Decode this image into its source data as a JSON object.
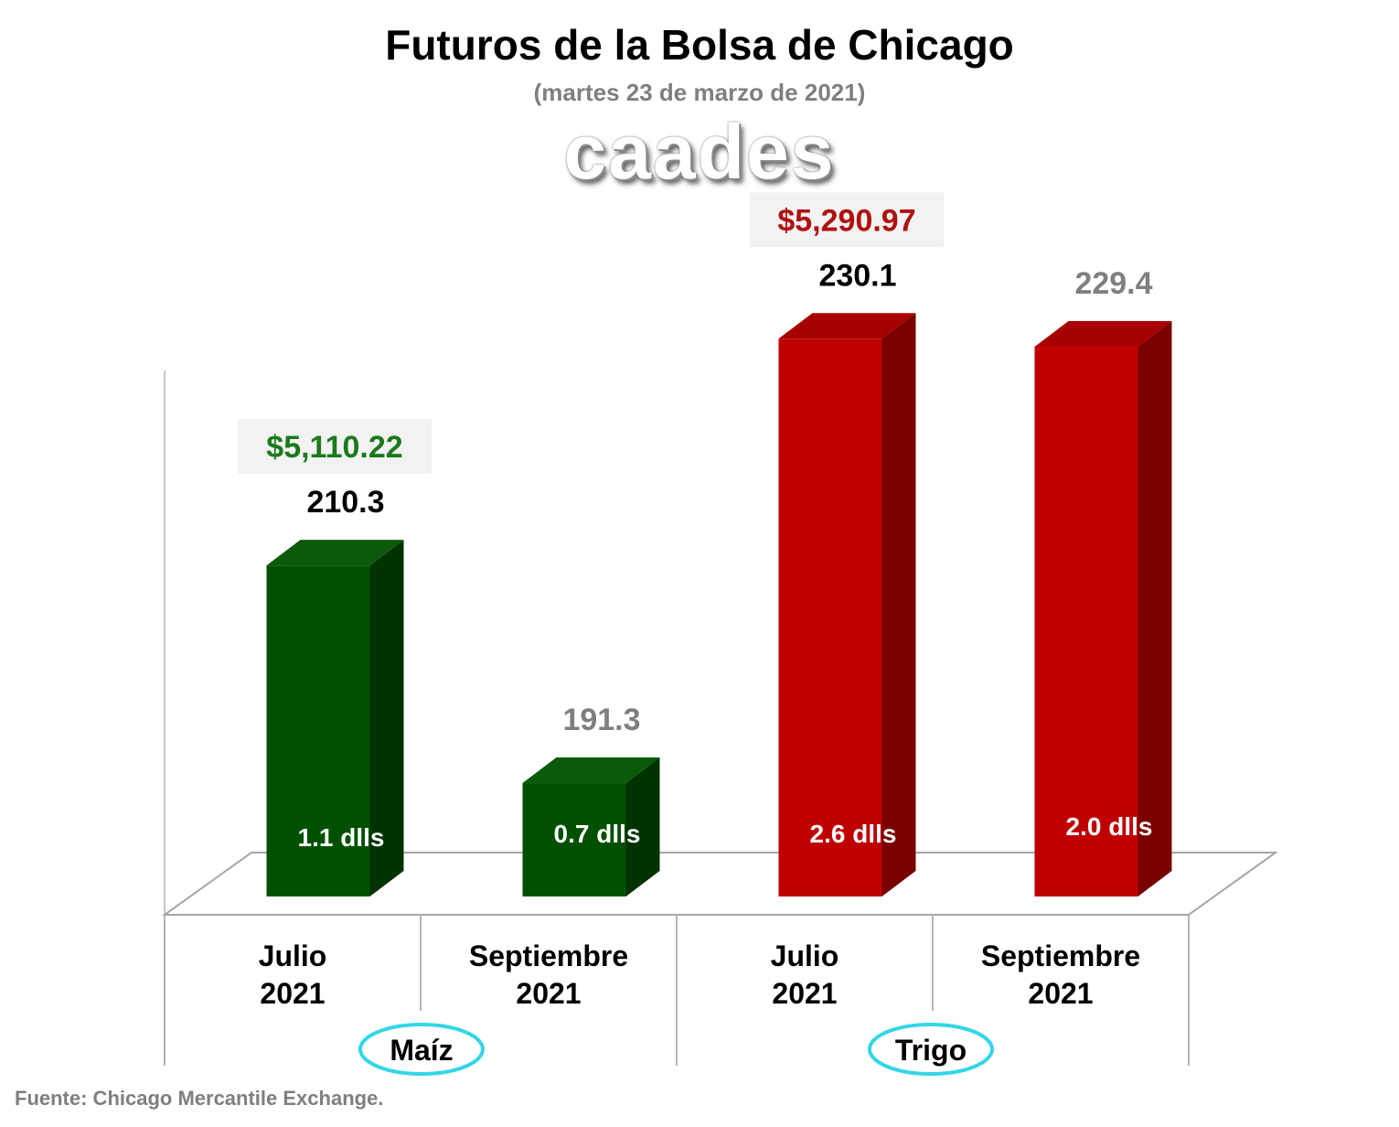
{
  "title": "Futuros de la Bolsa de Chicago",
  "subtitle": "(martes 23 de marzo de 2021)",
  "logo_text": "caades",
  "source": "Fuente: Chicago Mercantile Exchange.",
  "chart_data": {
    "type": "bar",
    "title": "Futuros de la Bolsa de Chicago",
    "subtitle": "(martes 23 de marzo de 2021)",
    "groups": [
      "Maíz",
      "Trigo"
    ],
    "categories": [
      "Julio 2021",
      "Septiembre 2021",
      "Julio 2021",
      "Septiembre 2021"
    ],
    "category_lines": [
      [
        "Julio",
        "2021"
      ],
      [
        "Septiembre",
        "2021"
      ],
      [
        "Julio",
        "2021"
      ],
      [
        "Septiembre",
        "2021"
      ]
    ],
    "values": [
      210.3,
      191.3,
      230.1,
      229.4
    ],
    "value_labels": [
      "210.3",
      "191.3",
      "230.1",
      "229.4"
    ],
    "inner_labels": [
      "1.1 dlls",
      "0.7 dlls",
      "2.6 dlls",
      "2.0 dlls"
    ],
    "price_labels": [
      "$5,110.22",
      "",
      "$5,290.97",
      ""
    ],
    "colors": {
      "maiz_front": "#005000",
      "maiz_side": "#003300",
      "maiz_top": "#0a5a0a",
      "trigo_front": "#c00000",
      "trigo_side": "#7a0000",
      "trigo_top": "#a80000",
      "price_maiz": "#1a7a1a",
      "price_trigo": "#b01010",
      "label_primary": "#000000",
      "label_secondary": "#7f7f7f",
      "ellipse": "#33d6e6"
    },
    "grid": false,
    "legend": "none"
  }
}
